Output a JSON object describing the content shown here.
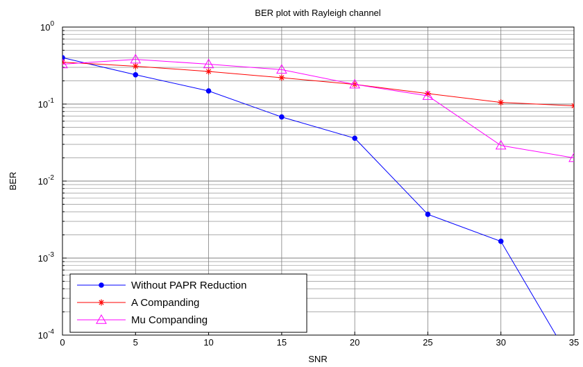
{
  "chart_data": {
    "type": "line",
    "title": "BER plot with Rayleigh channel",
    "xlabel": "SNR",
    "ylabel": "BER",
    "xlim": [
      0,
      35
    ],
    "ylim": [
      0.0001,
      1
    ],
    "yscale": "log",
    "x_ticks": [
      "0",
      "5",
      "10",
      "15",
      "20",
      "25",
      "30",
      "35"
    ],
    "y_ticks": [
      {
        "base": "10",
        "exp": "0"
      },
      {
        "base": "10",
        "exp": "-1"
      },
      {
        "base": "10",
        "exp": "-2"
      },
      {
        "base": "10",
        "exp": "-3"
      },
      {
        "base": "10",
        "exp": "-4"
      }
    ],
    "grid": true,
    "legend_position": "bottom-left",
    "series": [
      {
        "name": "Without PAPR Reduction",
        "color": "#0000ff",
        "marker": "dot",
        "x": [
          0,
          5,
          10,
          15,
          20,
          25,
          30,
          35
        ],
        "y": [
          0.4,
          0.24,
          0.148,
          0.068,
          0.036,
          0.0037,
          0.00165,
          4e-05
        ]
      },
      {
        "name": "A Companding",
        "color": "#ff0000",
        "marker": "star",
        "x": [
          0,
          5,
          10,
          15,
          20,
          25,
          30,
          35
        ],
        "y": [
          0.35,
          0.31,
          0.265,
          0.22,
          0.18,
          0.137,
          0.105,
          0.095
        ]
      },
      {
        "name": "Mu Companding",
        "color": "#ff00ff",
        "marker": "triangle",
        "x": [
          0,
          5,
          10,
          15,
          20,
          25,
          30,
          35
        ],
        "y": [
          0.33,
          0.38,
          0.33,
          0.28,
          0.18,
          0.128,
          0.029,
          0.02
        ]
      }
    ]
  }
}
